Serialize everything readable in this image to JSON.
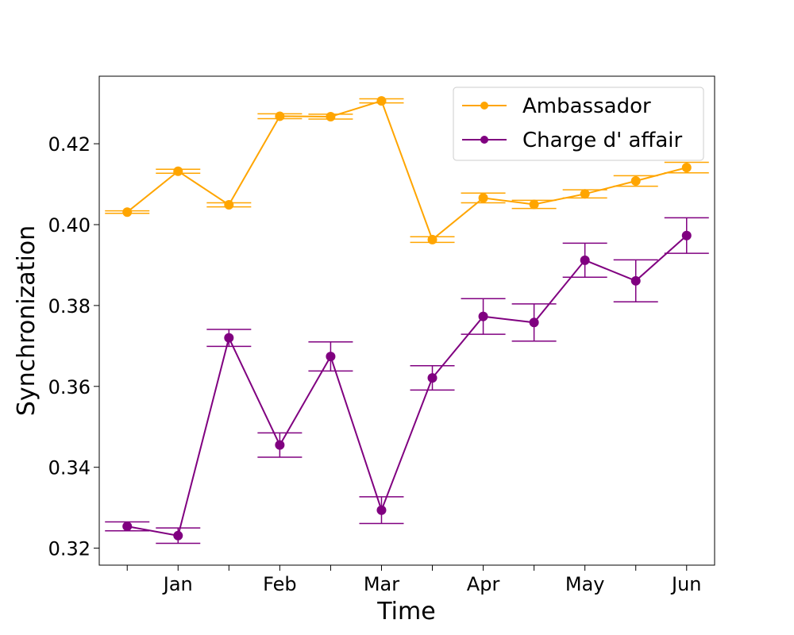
{
  "chart_data": {
    "type": "line",
    "title": "",
    "xlabel": "Time",
    "ylabel": "Synchronization",
    "x": [
      1,
      2,
      3,
      4,
      5,
      6,
      7,
      8,
      9,
      10,
      11,
      12
    ],
    "x_tick_positions": [
      1,
      2,
      3,
      4,
      5,
      6,
      7,
      8,
      9,
      10,
      11,
      12
    ],
    "x_tick_labels": [
      "",
      "Jan",
      "",
      "Feb",
      "",
      "Mar",
      "",
      "Apr",
      "",
      "May",
      "",
      "Jun"
    ],
    "xlim": [
      0.45,
      12.55
    ],
    "ylim": [
      0.3158,
      0.4367
    ],
    "y_ticks": [
      0.32,
      0.34,
      0.36,
      0.38,
      0.4,
      0.42
    ],
    "y_tick_labels": [
      "0.32",
      "0.34",
      "0.36",
      "0.38",
      "0.40",
      "0.42"
    ],
    "grid": false,
    "legend_position": "top-right",
    "series": [
      {
        "name": "Ambassador",
        "color": "#ffa500",
        "values": [
          0.4031,
          0.4132,
          0.4049,
          0.4268,
          0.4267,
          0.4306,
          0.3963,
          0.4066,
          0.405,
          0.4076,
          0.4108,
          0.4141
        ],
        "error": [
          0.0003,
          0.0005,
          0.0005,
          0.0006,
          0.0006,
          0.0005,
          0.0007,
          0.0012,
          0.001,
          0.001,
          0.0013,
          0.0013
        ]
      },
      {
        "name": "Charge d' affair",
        "color": "#800080",
        "values": [
          0.3254,
          0.3231,
          0.372,
          0.3455,
          0.3674,
          0.3294,
          0.3621,
          0.3773,
          0.3758,
          0.3912,
          0.3861,
          0.3973
        ],
        "error": [
          0.0011,
          0.0019,
          0.0021,
          0.003,
          0.0036,
          0.0033,
          0.003,
          0.0044,
          0.0046,
          0.0042,
          0.0052,
          0.0044
        ]
      }
    ]
  }
}
